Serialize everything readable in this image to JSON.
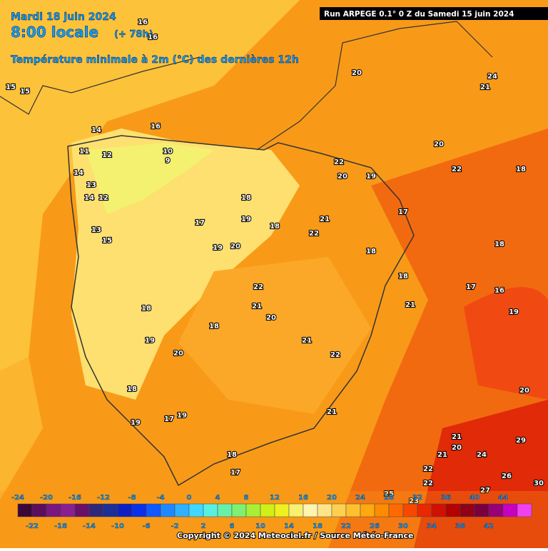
{
  "header": {
    "date": "Mardi 18 juin 2024",
    "time": "8:00 locale",
    "lead": "(+ 78h)",
    "variable": "Température minimale à 2m (°C) des dernières 12h",
    "run": "Run ARPEGE 0.1° 0 Z du Samedi 15 juin 2024"
  },
  "legend": {
    "labels_top": [
      -24,
      -20,
      -16,
      -12,
      -8,
      -4,
      0,
      4,
      8,
      12,
      16,
      20,
      24,
      28,
      32,
      36,
      40,
      44
    ],
    "labels_bottom": [
      -22,
      -18,
      -14,
      -10,
      -6,
      -2,
      2,
      6,
      10,
      14,
      18,
      22,
      26,
      30,
      34,
      38,
      42
    ],
    "colors": [
      "#3c0838",
      "#5a0e5c",
      "#7a1680",
      "#8a2090",
      "#6a1068",
      "#302878",
      "#1a3098",
      "#1020c0",
      "#0a30e8",
      "#1058ff",
      "#2088ff",
      "#30b0ff",
      "#40d8ff",
      "#58f0e0",
      "#68f0a8",
      "#80f070",
      "#a8f038",
      "#d0f018",
      "#f0f020",
      "#f8f070",
      "#fff4b0",
      "#ffe488",
      "#ffd050",
      "#ffc030",
      "#ffa810",
      "#ff8c00",
      "#ff6a00",
      "#f84800",
      "#e82800",
      "#d01000",
      "#b40000",
      "#900018",
      "#78003c",
      "#980078",
      "#c800c0",
      "#f040f0"
    ]
  },
  "map_labels": [
    16,
    16,
    15,
    15,
    14,
    16,
    11,
    12,
    10,
    9,
    14,
    13,
    12,
    14,
    15,
    13,
    17,
    18,
    19,
    20,
    18,
    19,
    22,
    21,
    18,
    20,
    19,
    18,
    17,
    19,
    18,
    20,
    21,
    22,
    20,
    21,
    20,
    22,
    19,
    18,
    17,
    18,
    21,
    21,
    20,
    22,
    24,
    18,
    18,
    17,
    16,
    19,
    20,
    22,
    21,
    20,
    23,
    25,
    26,
    27,
    29,
    30,
    21,
    22,
    24,
    18,
    17,
    19,
    21,
    22
  ],
  "footer": {
    "copyright": "Copyright © 2024 Meteociel.fr / Source Météo-France"
  }
}
